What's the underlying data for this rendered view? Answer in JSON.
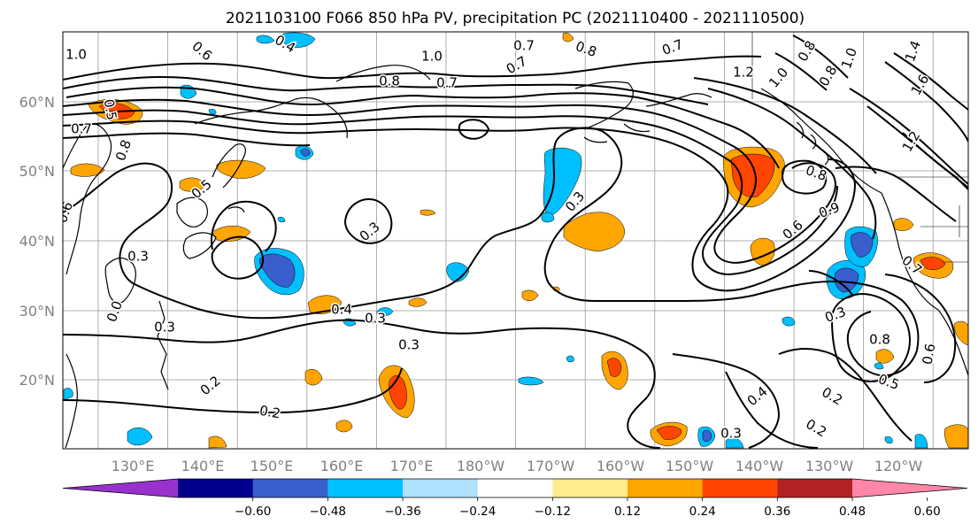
{
  "title": "2021103100 F066 850 hPa PV, precipitation PC (2021110400 - 2021110500)",
  "lat_labels": [
    "60°N",
    "50°N",
    "40°N",
    "30°N",
    "20°N"
  ],
  "lon_labels": [
    "130°E",
    "140°E",
    "150°E",
    "160°E",
    "170°E",
    "180°W",
    "170°W",
    "160°W",
    "150°W",
    "140°W",
    "130°W",
    "120°W"
  ],
  "colorbar": {
    "ticks": [
      "−0.60",
      "−0.48",
      "−0.36",
      "−0.24",
      "−0.12",
      "0.12",
      "0.24",
      "0.36",
      "0.48",
      "0.60"
    ],
    "colors": [
      "#9932cc",
      "#00008b",
      "#3a5fcd",
      "#00bfff",
      "#b0e2ff",
      "#ffffff",
      "#ffec8b",
      "#ffa500",
      "#ff4500",
      "#b22222",
      "#ff88aa"
    ]
  },
  "contour_labels": [
    {
      "text": "1.0"
    },
    {
      "text": "0.6"
    },
    {
      "text": "0.4"
    },
    {
      "text": "0.7"
    },
    {
      "text": "0.8"
    },
    {
      "text": "1.0"
    },
    {
      "text": "0.7"
    },
    {
      "text": "0.7"
    },
    {
      "text": "0.8"
    },
    {
      "text": "0.7"
    },
    {
      "text": "1.2"
    },
    {
      "text": "1.0"
    },
    {
      "text": "0.8"
    },
    {
      "text": "0.8"
    },
    {
      "text": "1.0"
    },
    {
      "text": "1.4"
    },
    {
      "text": "1.6"
    },
    {
      "text": "1.2"
    },
    {
      "text": "0.7"
    },
    {
      "text": "0.5"
    },
    {
      "text": "0.8"
    },
    {
      "text": "0.5"
    },
    {
      "text": "0.3"
    },
    {
      "text": "0.3"
    },
    {
      "text": "0.3"
    },
    {
      "text": "0.8"
    },
    {
      "text": "0.6"
    },
    {
      "text": "0.9"
    },
    {
      "text": "0.7"
    },
    {
      "text": "0.3"
    },
    {
      "text": "0.4"
    },
    {
      "text": "0.3"
    },
    {
      "text": "0.3"
    },
    {
      "text": "0.2"
    },
    {
      "text": "0.2"
    },
    {
      "text": "0.3"
    },
    {
      "text": "0.4"
    },
    {
      "text": "0.2"
    },
    {
      "text": "0.2"
    },
    {
      "text": "0.8"
    },
    {
      "text": "0.5"
    },
    {
      "text": "0.6"
    },
    {
      "text": "0.3"
    },
    {
      "text": "0.0"
    },
    {
      "text": "0.6"
    }
  ]
}
